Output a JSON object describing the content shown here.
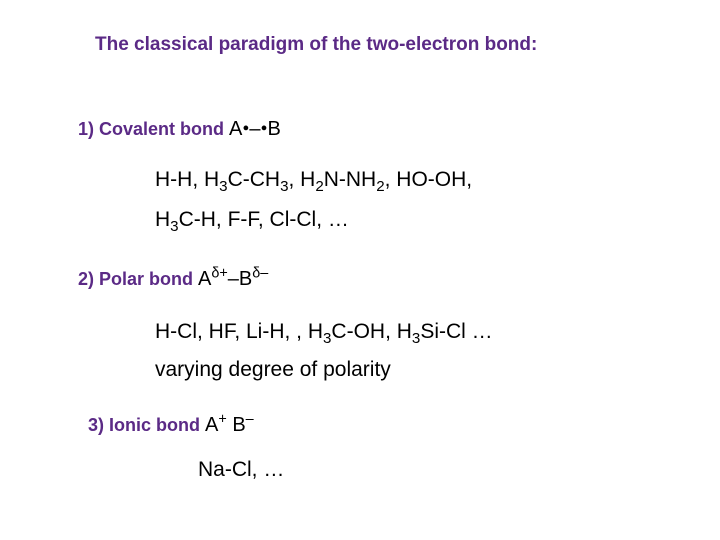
{
  "colors": {
    "heading": "#5b2a86",
    "body": "#000000",
    "background": "#ffffff"
  },
  "typography": {
    "title_fontsize": 19,
    "label_fontsize": 18,
    "formula_fontsize": 20,
    "example_fontsize": 21,
    "font_family": "Arial"
  },
  "title": "The classical paradigm of the two-electron bond:",
  "bond1": {
    "label": "1) Covalent bond ",
    "A": "A",
    "dot1": "•",
    "dash": "–",
    "dot2": "•",
    "B": "B",
    "ex_line1_p1": "H-H, H",
    "ex_line1_s1": "3",
    "ex_line1_p2": "C-CH",
    "ex_line1_s2": "3",
    "ex_line1_p3": ", H",
    "ex_line1_s3": "2",
    "ex_line1_p4": "N-NH",
    "ex_line1_s4": "2",
    "ex_line1_p5": ", HO-OH,",
    "ex_line2_p1": "H",
    "ex_line2_s1": "3",
    "ex_line2_p2": "C-H, F-F, Cl-Cl, …"
  },
  "bond2": {
    "label": "2) Polar bond ",
    "A": "A",
    "supA": "δ+",
    "dash": "–",
    "B": "B",
    "supB": "δ–",
    "ex_line1_p1": "H-Cl, HF, Li-H, , H",
    "ex_line1_s1": "3",
    "ex_line1_p2": "C-OH, H",
    "ex_line1_s2": "3",
    "ex_line1_p3": "Si-Cl …",
    "ex_line2": "varying degree of polarity "
  },
  "bond3": {
    "label": "3) Ionic bond ",
    "A": "A",
    "supA": "+",
    "space": " ",
    "B": "B",
    "supB": "–",
    "ex_line1": "Na-Cl, …"
  }
}
